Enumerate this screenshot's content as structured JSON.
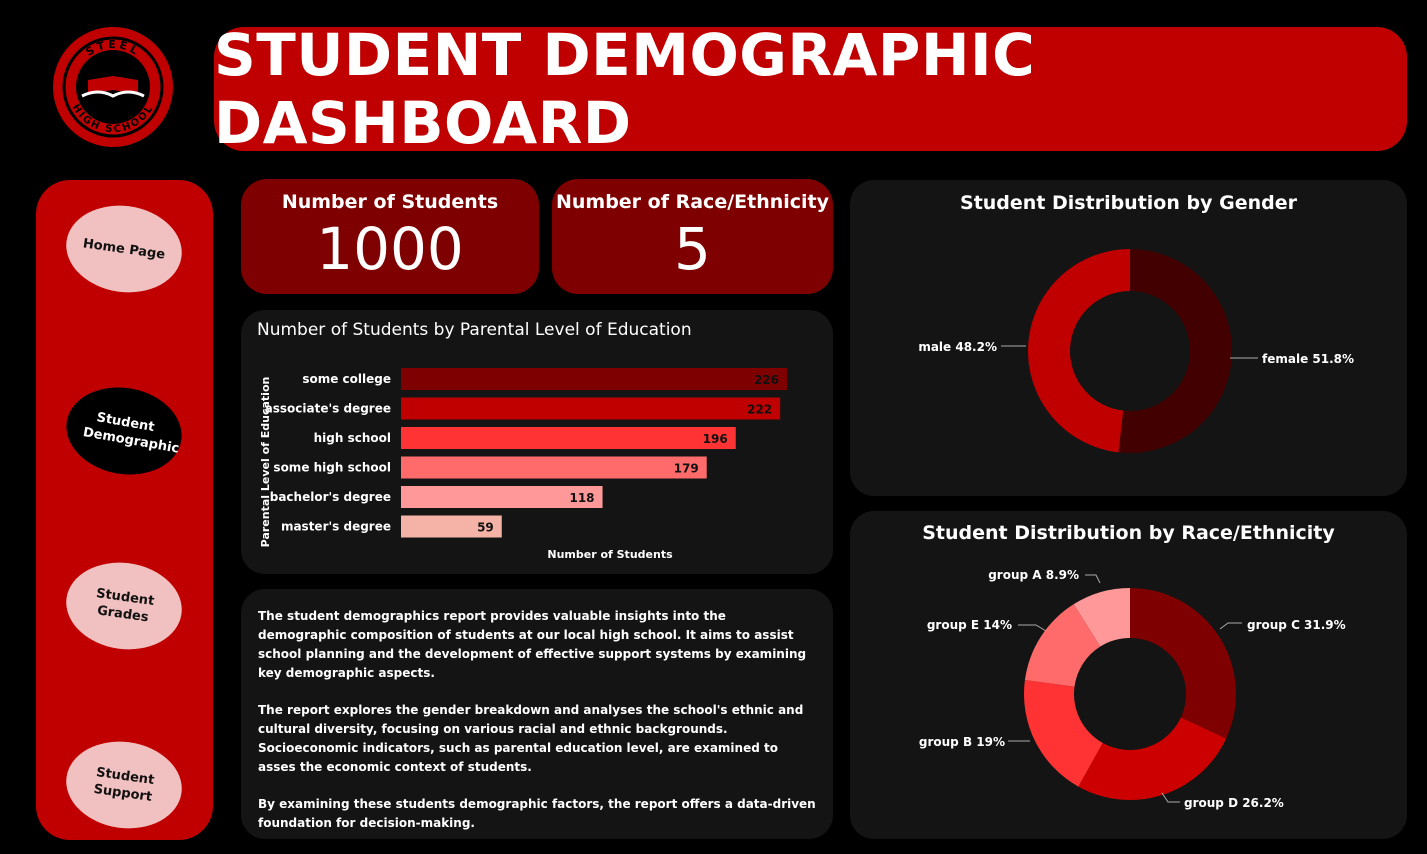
{
  "logo": {
    "top_text": "STEEL",
    "bottom_text": "HIGH SCHOOL"
  },
  "header": {
    "title": "STUDENT DEMOGRAPHIC DASHBOARD"
  },
  "nav": [
    {
      "label": "Home Page",
      "active": false
    },
    {
      "label": "Student Demographic",
      "active": true
    },
    {
      "label": "Student Grades",
      "active": false
    },
    {
      "label": "Student Support",
      "active": false
    }
  ],
  "kpis": [
    {
      "label": "Number of Students",
      "value": "1000"
    },
    {
      "label": "Number of Race/Ethnicity",
      "value": "5"
    }
  ],
  "colors": {
    "primary": "#c00000",
    "dark_red": "#7f0000",
    "panel": "#141414",
    "nav_light": "#f1c0c0"
  },
  "bar_chart": {
    "title": "Number of Students by Parental Level of Education",
    "ylabel": "Parental Level of Education",
    "xlabel": "Number of Students"
  },
  "gender_chart": {
    "title": "Student Distribution by Gender"
  },
  "race_chart": {
    "title": "Student Distribution by Race/Ethnicity"
  },
  "description": [
    "The student demographics report provides valuable insights into the demographic composition of students at our local high school. It aims to assist school planning and the development of effective support systems by examining key demographic aspects.",
    "The report explores the gender breakdown and analyses the school's ethnic and cultural diversity, focusing on various racial and ethnic backgrounds. Socioeconomic indicators, such as parental education level, are examined to asses the economic context of students.",
    "By examining these students demographic factors, the report offers a data-driven foundation for decision-making."
  ],
  "chart_data": [
    {
      "type": "bar",
      "orientation": "horizontal",
      "title": "Number of Students by Parental Level of Education",
      "xlabel": "Number of Students",
      "ylabel": "Parental Level of Education",
      "categories": [
        "some college",
        "associate's degree",
        "high school",
        "some high school",
        "bachelor's degree",
        "master's degree"
      ],
      "values": [
        226,
        222,
        196,
        179,
        118,
        59
      ],
      "colors": [
        "#7f0000",
        "#c00000",
        "#ff3333",
        "#ff6b6b",
        "#ff9999",
        "#f4b3a6"
      ],
      "xlim": [
        0,
        226
      ]
    },
    {
      "type": "pie",
      "donut": true,
      "title": "Student Distribution by Gender",
      "categories": [
        "female",
        "male"
      ],
      "values": [
        51.8,
        48.2
      ],
      "labels": [
        "female 51.8%",
        "male 48.2%"
      ],
      "colors": [
        "#420000",
        "#c00000"
      ]
    },
    {
      "type": "pie",
      "donut": true,
      "title": "Student Distribution by Race/Ethnicity",
      "categories": [
        "group C",
        "group D",
        "group B",
        "group E",
        "group A"
      ],
      "values": [
        31.9,
        26.2,
        19,
        14,
        8.9
      ],
      "labels": [
        "group C 31.9%",
        "group D 26.2%",
        "group B 19%",
        "group E 14%",
        "group A 8.9%"
      ],
      "colors": [
        "#7f0000",
        "#cc0000",
        "#ff3333",
        "#ff6b6b",
        "#ff9999"
      ]
    }
  ]
}
